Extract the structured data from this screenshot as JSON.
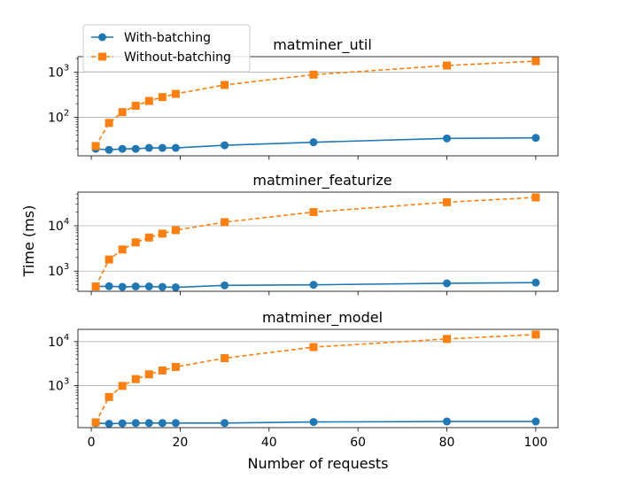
{
  "chart_data": {
    "type": "line",
    "ylabel": "Time (ms)",
    "xlabel": "Number of requests",
    "x_ticks": [
      0,
      20,
      40,
      60,
      80,
      100
    ],
    "xlim": [
      -3,
      105
    ],
    "legend": {
      "placement": "top-left",
      "entries": [
        "With-batching",
        "Without-batching"
      ]
    },
    "colors": {
      "with": "#1f77b4",
      "without": "#ff7f0e"
    },
    "log_scale_y": true,
    "grid_y": true,
    "x": [
      1,
      4,
      7,
      10,
      13,
      16,
      19,
      30,
      50,
      80,
      100
    ],
    "panels": [
      {
        "title": "matminer_util",
        "ylim": [
          14,
          2200
        ],
        "y_ticks": [
          {
            "value": 100,
            "base": "10",
            "exp": "2"
          },
          {
            "value": 1000,
            "base": "10",
            "exp": "3"
          }
        ],
        "series": [
          {
            "name": "With-batching",
            "values": [
              20,
              19,
              20,
              20,
              21,
              21,
              21,
              24,
              28,
              34,
              35
            ]
          },
          {
            "name": "Without-batching",
            "values": [
              23,
              75,
              130,
              180,
              230,
              280,
              330,
              520,
              880,
              1400,
              1750
            ]
          }
        ]
      },
      {
        "title": "matminer_featurize",
        "ylim": [
          360,
          55000
        ],
        "y_ticks": [
          {
            "value": 1000,
            "base": "10",
            "exp": "3"
          },
          {
            "value": 10000,
            "base": "10",
            "exp": "4"
          }
        ],
        "series": [
          {
            "name": "With-batching",
            "values": [
              460,
              465,
              450,
              460,
              460,
              450,
              440,
              485,
              500,
              540,
              560
            ]
          },
          {
            "name": "Without-batching",
            "values": [
              460,
              1800,
              3000,
              4300,
              5500,
              6700,
              8000,
              12000,
              20000,
              33000,
              42000
            ]
          }
        ]
      },
      {
        "title": "matminer_model",
        "ylim": [
          110,
          19000
        ],
        "y_ticks": [
          {
            "value": 1000,
            "base": "10",
            "exp": "3"
          },
          {
            "value": 10000,
            "base": "10",
            "exp": "4"
          }
        ],
        "series": [
          {
            "name": "With-batching",
            "values": [
              140,
              135,
              138,
              140,
              140,
              140,
              140,
              140,
              148,
              152,
              152
            ]
          },
          {
            "name": "Without-batching",
            "values": [
              145,
              550,
              980,
              1400,
              1800,
              2200,
              2650,
              4200,
              7500,
              11500,
              14500
            ]
          }
        ]
      }
    ]
  }
}
